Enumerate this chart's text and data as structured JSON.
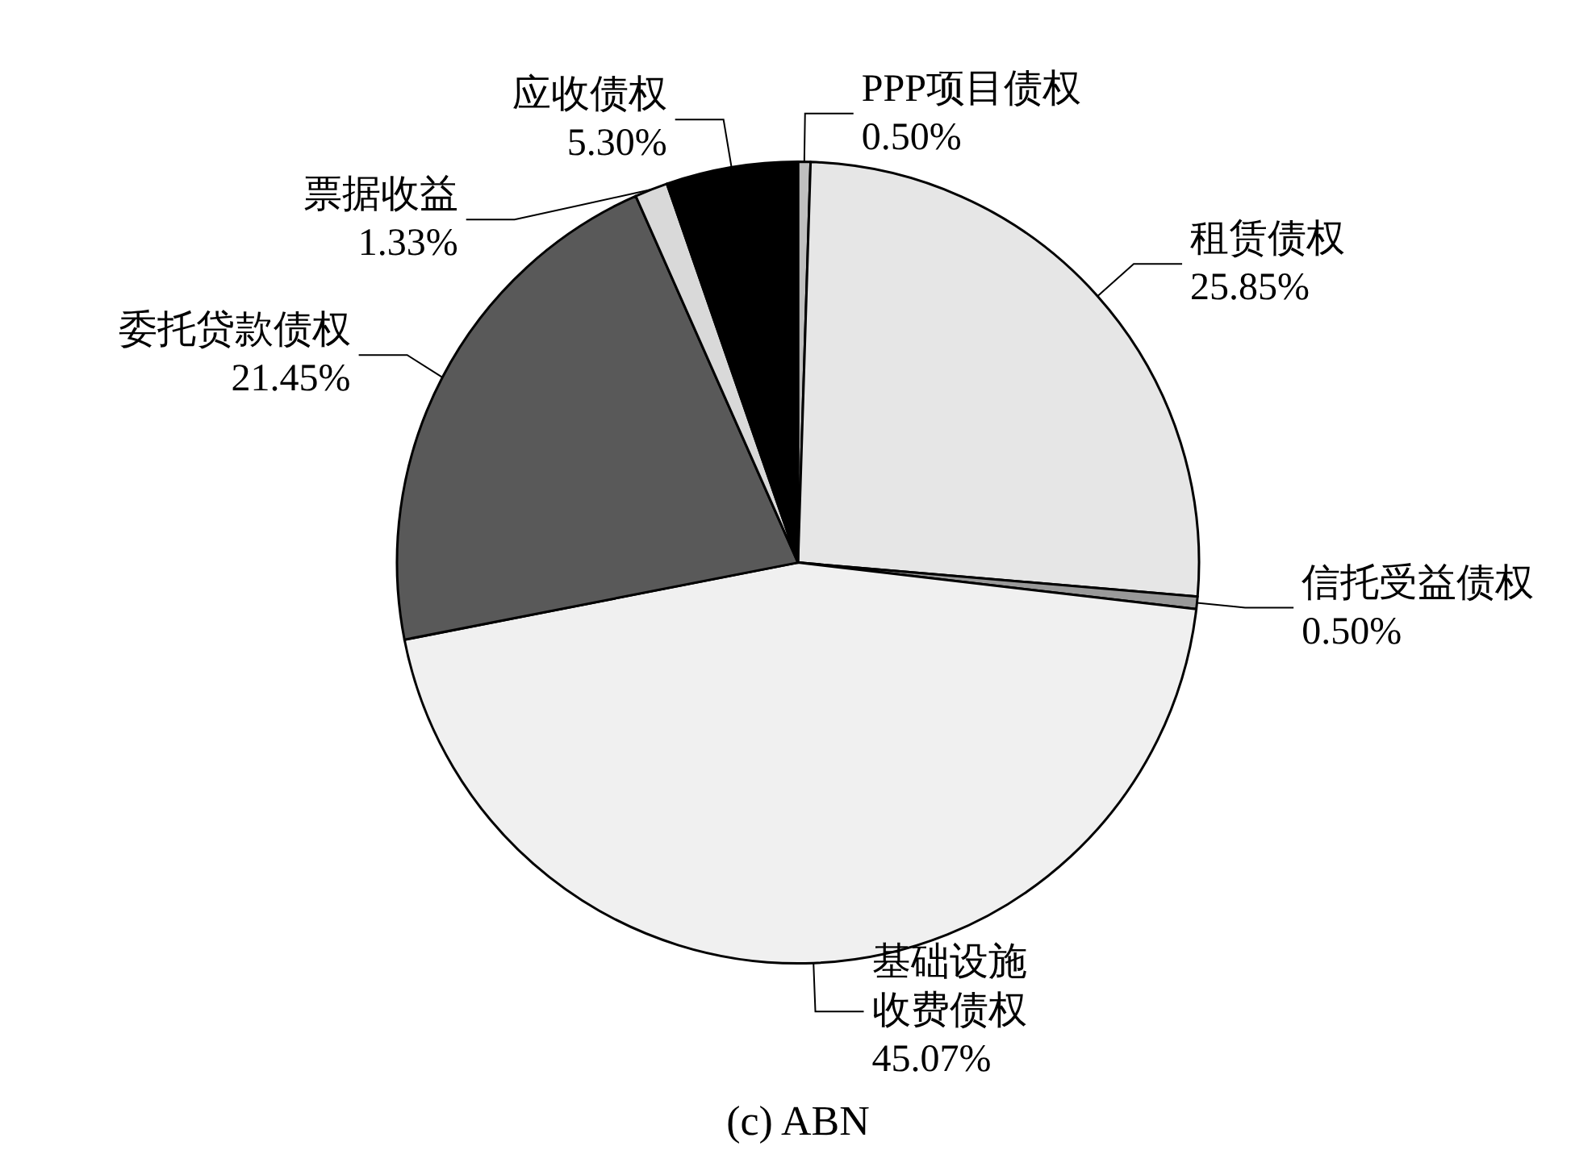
{
  "chart_data": {
    "type": "pie",
    "title": "(c) ABN",
    "categories": [
      "PPP项目债权",
      "租赁债权",
      "信托受益债权",
      "基础设施收费债权",
      "委托贷款债权",
      "票据收益",
      "应收债权"
    ],
    "values": [
      0.5,
      25.85,
      0.5,
      45.07,
      21.45,
      1.33,
      5.3
    ],
    "value_labels": [
      "0.50%",
      "25.85%",
      "0.50%",
      "45.07%",
      "21.45%",
      "1.33%",
      "5.30%"
    ],
    "colors": [
      "#bfbfbf",
      "#e6e6e6",
      "#999999",
      "#f0f0f0",
      "#595959",
      "#d9d9d9",
      "#000000"
    ],
    "legend": false
  }
}
